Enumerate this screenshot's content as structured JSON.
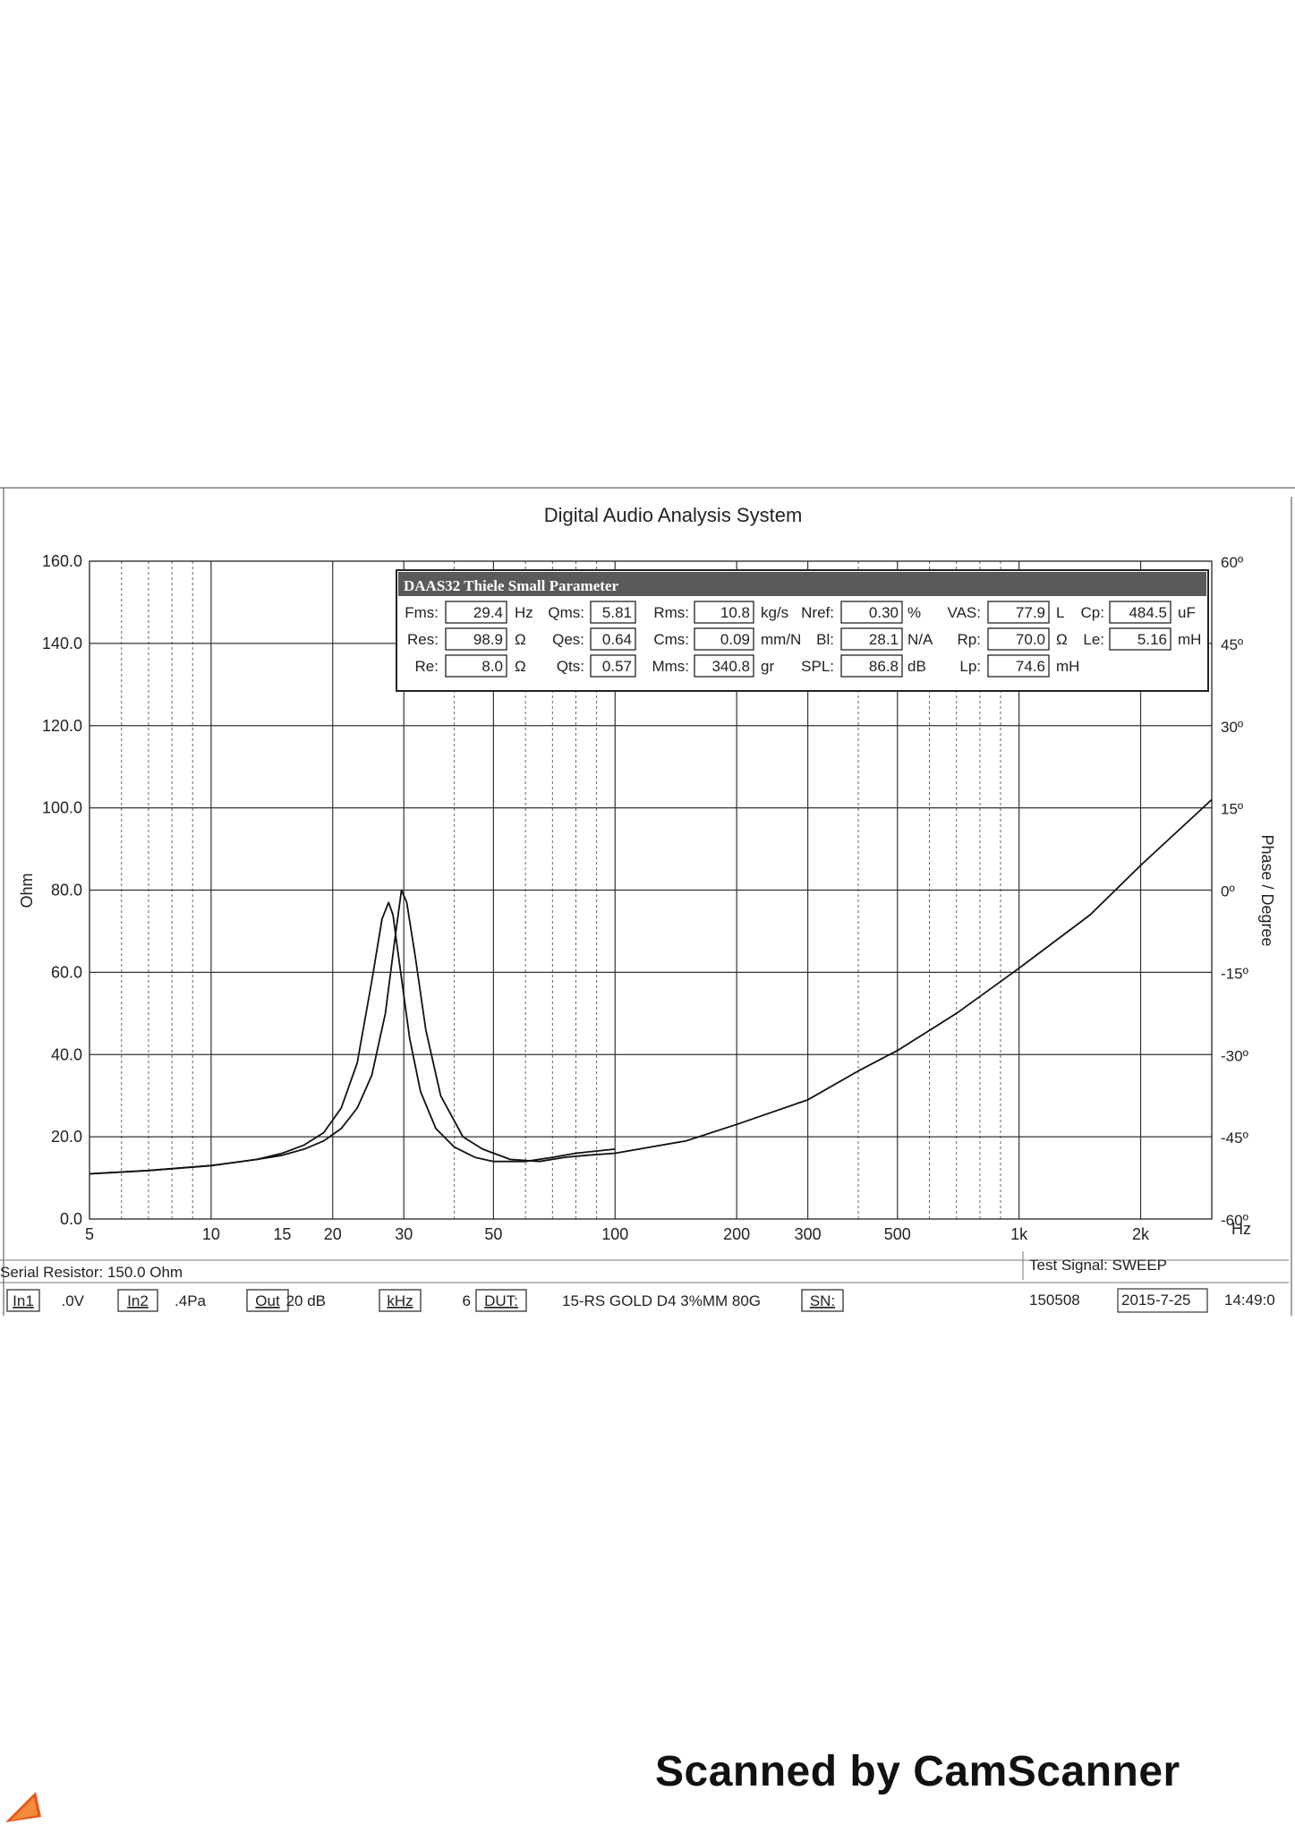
{
  "window_title": "Digital Audio Analysis System",
  "panel": {
    "title": "DAAS32 Thiele Small Parameter",
    "params": [
      {
        "name": "Fms:",
        "value": "29.4",
        "unit": "Hz"
      },
      {
        "name": "Qms:",
        "value": "5.81",
        "unit": ""
      },
      {
        "name": "Rms:",
        "value": "10.8",
        "unit": "kg/s"
      },
      {
        "name": "Nref:",
        "value": "0.30",
        "unit": "%"
      },
      {
        "name": "VAS:",
        "value": "77.9",
        "unit": "L"
      },
      {
        "name": "Cp:",
        "value": "484.5",
        "unit": "uF"
      },
      {
        "name": "Res:",
        "value": "98.9",
        "unit": "Ω"
      },
      {
        "name": "Qes:",
        "value": "0.64",
        "unit": ""
      },
      {
        "name": "Cms:",
        "value": "0.09",
        "unit": "mm/N"
      },
      {
        "name": "Bl:",
        "value": "28.1",
        "unit": "N/A"
      },
      {
        "name": "Rp:",
        "value": "70.0",
        "unit": "Ω"
      },
      {
        "name": "Le:",
        "value": "5.16",
        "unit": "mH"
      },
      {
        "name": "Re:",
        "value": "8.0",
        "unit": "Ω"
      },
      {
        "name": "Qts:",
        "value": "0.57",
        "unit": ""
      },
      {
        "name": "Mms:",
        "value": "340.8",
        "unit": "gr"
      },
      {
        "name": "SPL:",
        "value": "86.8",
        "unit": "dB"
      },
      {
        "name": "Lp:",
        "value": "74.6",
        "unit": "mH"
      }
    ]
  },
  "chart_data": {
    "type": "line",
    "title": "Digital Audio Analysis System",
    "ylabel": "Ohm",
    "y2label": "Phase / Degree",
    "xunit": "Hz",
    "xscale": "log",
    "xlim": [
      5,
      3000
    ],
    "ylim": [
      0,
      160
    ],
    "y2lim": [
      -60,
      60
    ],
    "xticks": [
      5,
      10,
      15,
      20,
      30,
      50,
      100,
      200,
      300,
      500,
      1000,
      2000
    ],
    "xtick_labels": [
      "5",
      "10",
      "15",
      "20",
      "30",
      "50",
      "100",
      "200",
      "300",
      "500",
      "1k",
      "2k"
    ],
    "yticks": [
      0,
      20,
      40,
      60,
      80,
      100,
      120,
      140,
      160
    ],
    "ytick_labels": [
      "0.0",
      "20.0",
      "40.0",
      "60.0",
      "80.0",
      "100.0",
      "120.0",
      "140.0",
      "160.0"
    ],
    "y2ticks": [
      -60,
      -45,
      -30,
      -15,
      0,
      15,
      30,
      45,
      60
    ],
    "y2tick_labels": [
      "-60º",
      "-45º",
      "-30º",
      "-15º",
      "0º",
      "15º",
      "30º",
      "45º",
      "60º"
    ],
    "grid": true,
    "series": [
      {
        "x": [
          5,
          7,
          10,
          13,
          15,
          17,
          19,
          21,
          23,
          25,
          26.5,
          27.5,
          28.2,
          29,
          31,
          33,
          36,
          40,
          45,
          50,
          60,
          70,
          80,
          100
        ],
        "y": [
          11,
          11.8,
          13,
          14.5,
          16,
          18,
          21,
          27,
          38,
          58,
          73,
          77,
          74,
          65,
          44,
          31,
          22,
          17.5,
          15,
          14,
          14,
          15,
          16,
          17
        ]
      },
      {
        "x": [
          5,
          7,
          10,
          13,
          15,
          17,
          19,
          21,
          23,
          25,
          27,
          28.5,
          29.6,
          30.5,
          32,
          34,
          37,
          42,
          47,
          55,
          65,
          75,
          85,
          100,
          150,
          200,
          300,
          400,
          500,
          700,
          1000,
          1500,
          2000,
          3000
        ],
        "y": [
          11,
          11.8,
          13,
          14.5,
          15.5,
          17,
          19,
          22,
          27,
          35,
          50,
          68,
          80,
          77,
          64,
          46,
          30,
          20,
          17,
          14.5,
          14,
          15,
          15.5,
          16,
          19,
          23,
          29,
          36,
          41,
          50,
          61,
          74,
          86,
          102
        ]
      }
    ]
  },
  "footer": {
    "serial_resistor": "Serial Resistor: 150.0 Ohm",
    "test_signal": "Test Signal: SWEEP",
    "items": [
      {
        "label": "In1",
        "value": ".0V"
      },
      {
        "label": "In2",
        "value": ".4Pa"
      },
      {
        "label": "Out",
        "value": "20 dB"
      },
      {
        "label": "kHz",
        "value": "6"
      },
      {
        "label": "DUT:",
        "value": "15-RS GOLD D4 3%MM 80G"
      },
      {
        "label": "SN:",
        "value": ""
      }
    ],
    "serial_no": "150508",
    "date": "2015-7-25",
    "time": "14:49:0"
  },
  "watermark": "Scanned by CamScanner"
}
